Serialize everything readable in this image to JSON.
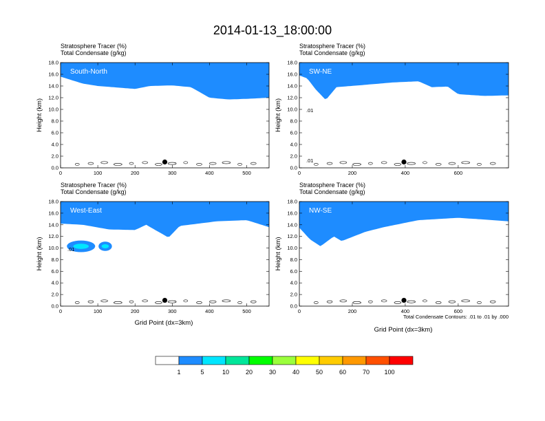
{
  "title": "2014-01-13_18:00:00",
  "colors": [
    "#ffffff",
    "#1e8cff",
    "#00e6ff",
    "#00e69a",
    "#00ff00",
    "#9bff3c",
    "#ffff00",
    "#ffcc00",
    "#ff9900",
    "#ff5000",
    "#ff0000"
  ],
  "colorbar": {
    "labels": [
      "1",
      "5",
      "10",
      "20",
      "30",
      "40",
      "50",
      "60",
      "70",
      "100"
    ]
  },
  "xlabel": "Grid Point (dx=3km)",
  "footnote": "Total Condensate Contours: .01 to .01 by .000",
  "chart_data": [
    {
      "type": "heatmap",
      "name": "South-North",
      "subtitle1": "Stratosphere Tracer   (%)",
      "subtitle2": "Total Condensate   (g/kg)",
      "ylabel": "Height (km)",
      "xlabel": "",
      "xlim": [
        0,
        560
      ],
      "ylim": [
        0,
        18
      ],
      "xticks": [
        0,
        100,
        200,
        300,
        400,
        500
      ],
      "yticks": [
        "0.0",
        "2.0",
        "4.0",
        "6.0",
        "8.0",
        "10.0",
        "12.0",
        "14.0",
        "16.0",
        "18.0"
      ],
      "marker": [
        280,
        1.0
      ],
      "contour_labels": [],
      "bottoms": [
        [
          0,
          15.6
        ],
        [
          20,
          15.2
        ],
        [
          60,
          14.4
        ],
        [
          100,
          14.0
        ],
        [
          140,
          13.8
        ],
        [
          200,
          13.5
        ],
        [
          240,
          14.0
        ],
        [
          300,
          14.1
        ],
        [
          350,
          13.8
        ],
        [
          400,
          12.0
        ],
        [
          450,
          11.7
        ],
        [
          500,
          11.8
        ],
        [
          560,
          12.0
        ]
      ],
      "blobs": []
    },
    {
      "type": "heatmap",
      "name": "SW-NE",
      "subtitle1": "Stratosphere Tracer   (%)",
      "subtitle2": "Total Condensate   (g/kg)",
      "ylabel": "Height (km)",
      "xlabel": "",
      "xlim": [
        0,
        790
      ],
      "ylim": [
        0,
        18
      ],
      "xticks": [
        0,
        200,
        400,
        600
      ],
      "yticks": [
        "0.0",
        "2.0",
        "4.0",
        "6.0",
        "8.0",
        "10.0",
        "12.0",
        "14.0",
        "16.0",
        "18.0"
      ],
      "marker": [
        395,
        1.0
      ],
      "contour_labels": [
        ".01",
        ".01"
      ],
      "bottoms": [
        [
          0,
          15.8
        ],
        [
          30,
          15.3
        ],
        [
          60,
          13.5
        ],
        [
          100,
          11.6
        ],
        [
          140,
          13.8
        ],
        [
          250,
          14.2
        ],
        [
          350,
          14.6
        ],
        [
          450,
          14.8
        ],
        [
          500,
          13.8
        ],
        [
          560,
          13.9
        ],
        [
          600,
          12.6
        ],
        [
          700,
          12.3
        ],
        [
          790,
          12.4
        ]
      ],
      "blobs": []
    },
    {
      "type": "heatmap",
      "name": "West-East",
      "subtitle1": "Stratosphere Tracer   (%)",
      "subtitle2": "Total Condensate   (g/kg)",
      "ylabel": "Height (km)",
      "xlabel": "Grid Point (dx=3km)",
      "xlim": [
        0,
        560
      ],
      "ylim": [
        0,
        18
      ],
      "xticks": [
        0,
        100,
        200,
        300,
        400,
        500
      ],
      "yticks": [
        "0.0",
        "2.0",
        "4.0",
        "6.0",
        "8.0",
        "10.0",
        "12.0",
        "14.0",
        "16.0",
        "18.0"
      ],
      "marker": [
        280,
        1.0
      ],
      "contour_labels": [
        ".01"
      ],
      "bottoms": [
        [
          0,
          14.2
        ],
        [
          60,
          14.0
        ],
        [
          130,
          13.2
        ],
        [
          200,
          13.1
        ],
        [
          230,
          14.0
        ],
        [
          290,
          11.8
        ],
        [
          320,
          13.8
        ],
        [
          420,
          14.6
        ],
        [
          500,
          14.8
        ],
        [
          560,
          13.6
        ]
      ],
      "blobs": [
        [
          55,
          10.3,
          38,
          1.0
        ],
        [
          120,
          10.3,
          18,
          0.8
        ]
      ]
    },
    {
      "type": "heatmap",
      "name": "NW-SE",
      "subtitle1": "Stratosphere Tracer   (%)",
      "subtitle2": "Total Condensate   (g/kg)",
      "ylabel": "Height (km)",
      "xlabel": "Grid Point (dx=3km)",
      "xlim": [
        0,
        790
      ],
      "ylim": [
        0,
        18
      ],
      "xticks": [
        0,
        200,
        400,
        600
      ],
      "yticks": [
        "0.0",
        "2.0",
        "4.0",
        "6.0",
        "8.0",
        "10.0",
        "12.0",
        "14.0",
        "16.0",
        "18.0"
      ],
      "marker": [
        395,
        1.0
      ],
      "contour_labels": [],
      "bottoms": [
        [
          0,
          13.5
        ],
        [
          40,
          11.5
        ],
        [
          80,
          10.3
        ],
        [
          130,
          12.0
        ],
        [
          160,
          11.2
        ],
        [
          250,
          12.8
        ],
        [
          320,
          13.6
        ],
        [
          450,
          14.8
        ],
        [
          600,
          15.2
        ],
        [
          700,
          14.9
        ],
        [
          790,
          14.6
        ]
      ],
      "blobs": []
    }
  ]
}
